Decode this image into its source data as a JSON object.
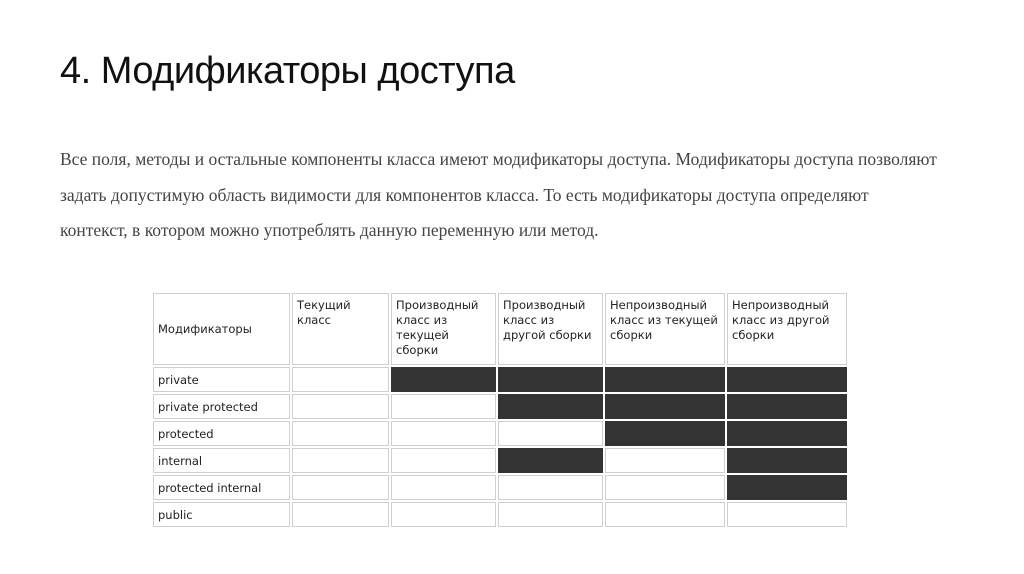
{
  "title": {
    "number": "4.",
    "text": "Модификаторы доступа"
  },
  "paragraph": "Все поля, методы и остальные компоненты класса имеют модификаторы доступа. Модификаторы доступа позволяют задать допустимую область видимости для компонентов класса. То есть модификаторы доступа определяют контекст, в котором можно употреблять данную переменную или метод.",
  "table": {
    "headers": [
      "Модификаторы",
      "Текущий класс",
      "Производный класс из текущей сборки",
      "Производный класс из другой сборки",
      "Непроизводный класс из текущей сборки",
      "Непроизводный класс из другой сборки"
    ],
    "rows": [
      {
        "modifier": "private",
        "access": [
          true,
          false,
          false,
          false,
          false
        ]
      },
      {
        "modifier": "private protected",
        "access": [
          true,
          true,
          false,
          false,
          false
        ]
      },
      {
        "modifier": "protected",
        "access": [
          true,
          true,
          true,
          false,
          false
        ]
      },
      {
        "modifier": "internal",
        "access": [
          true,
          true,
          false,
          true,
          false
        ]
      },
      {
        "modifier": "protected internal",
        "access": [
          true,
          true,
          true,
          true,
          false
        ]
      },
      {
        "modifier": "public",
        "access": [
          true,
          true,
          true,
          true,
          true
        ]
      }
    ],
    "denied_color": "#333333"
  }
}
